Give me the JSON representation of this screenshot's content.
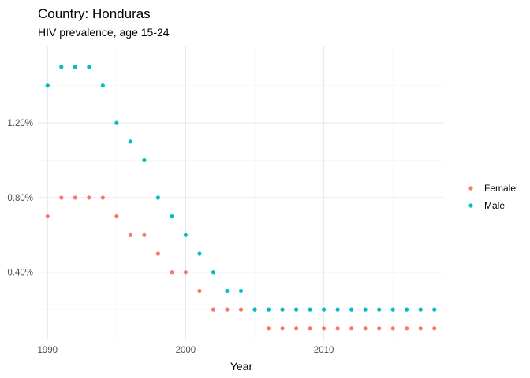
{
  "chart_data": {
    "type": "scatter",
    "title": "Country: Honduras",
    "subtitle": "HIV prevalence, age 15-24",
    "xlabel": "Year",
    "ylabel": "",
    "xlim": [
      1989.3,
      2018.7
    ],
    "ylim": [
      0.036,
      1.614
    ],
    "x_ticks": [
      1990,
      2000,
      2010
    ],
    "y_ticks": [
      0.4,
      0.8,
      1.2
    ],
    "y_tick_labels": [
      "0.40%",
      "0.80%",
      "1.20%"
    ],
    "grid": true,
    "legend_position": "right",
    "series": [
      {
        "name": "Female",
        "color": "#F8766D",
        "x": [
          1990,
          1991,
          1992,
          1993,
          1994,
          1995,
          1996,
          1997,
          1998,
          1999,
          2000,
          2001,
          2002,
          2003,
          2004,
          2005,
          2006,
          2007,
          2008,
          2009,
          2010,
          2011,
          2012,
          2013,
          2014,
          2015,
          2016,
          2017,
          2018
        ],
        "y": [
          0.7,
          0.8,
          0.8,
          0.8,
          0.8,
          0.7,
          0.6,
          0.6,
          0.5,
          0.4,
          0.4,
          0.3,
          0.2,
          0.2,
          0.2,
          0.2,
          0.1,
          0.1,
          0.1,
          0.1,
          0.1,
          0.1,
          0.1,
          0.1,
          0.1,
          0.1,
          0.1,
          0.1,
          0.1
        ]
      },
      {
        "name": "Male",
        "color": "#00BFC4",
        "x": [
          1990,
          1991,
          1992,
          1993,
          1994,
          1995,
          1996,
          1997,
          1998,
          1999,
          2000,
          2001,
          2002,
          2003,
          2004,
          2005,
          2006,
          2007,
          2008,
          2009,
          2010,
          2011,
          2012,
          2013,
          2014,
          2015,
          2016,
          2017,
          2018
        ],
        "y": [
          1.4,
          1.5,
          1.5,
          1.5,
          1.4,
          1.2,
          1.1,
          1.0,
          0.8,
          0.7,
          0.6,
          0.5,
          0.4,
          0.3,
          0.3,
          0.2,
          0.2,
          0.2,
          0.2,
          0.2,
          0.2,
          0.2,
          0.2,
          0.2,
          0.2,
          0.2,
          0.2,
          0.2,
          0.2
        ]
      }
    ]
  }
}
